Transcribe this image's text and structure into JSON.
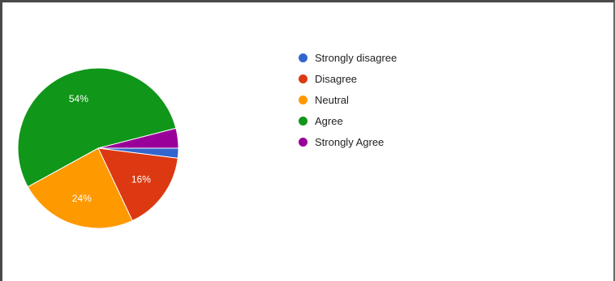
{
  "chart_data": {
    "type": "pie",
    "title": "",
    "categories": [
      "Strongly disagree",
      "Disagree",
      "Neutral",
      "Agree",
      "Strongly Agree"
    ],
    "values": [
      2,
      16,
      24,
      54,
      4
    ],
    "unit": "%",
    "slice_labels": [
      "",
      "16%",
      "24%",
      "54%",
      ""
    ],
    "colors": [
      "#3366cc",
      "#dc3912",
      "#ff9900",
      "#109618",
      "#990099"
    ],
    "legend_position": "right"
  }
}
